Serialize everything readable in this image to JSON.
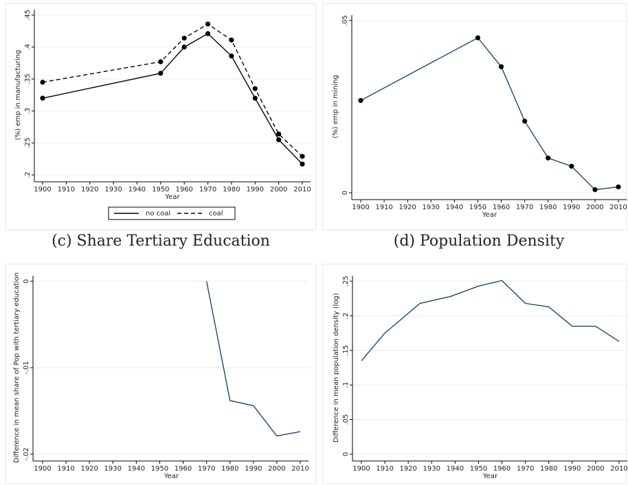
{
  "chart_data": [
    {
      "type": "line",
      "xlabel": "Year",
      "ylabel": "(%) emp in manufacturing",
      "x": [
        1900,
        1950,
        1960,
        1970,
        1980,
        1990,
        2000,
        2010
      ],
      "series": [
        {
          "name": "no coal",
          "color": "#000000",
          "dash": false,
          "marker": true,
          "values": [
            0.32,
            0.359,
            0.4,
            0.421,
            0.386,
            0.32,
            0.255,
            0.217
          ]
        },
        {
          "name": "coal",
          "color": "#000000",
          "dash": true,
          "marker": true,
          "values": [
            0.345,
            0.377,
            0.414,
            0.436,
            0.411,
            0.335,
            0.264,
            0.229
          ]
        }
      ],
      "xlim": [
        1900,
        2010
      ],
      "ylim": [
        0.2,
        0.45
      ],
      "xticks": [
        1900,
        1910,
        1920,
        1930,
        1940,
        1950,
        1960,
        1970,
        1980,
        1990,
        2000,
        2010
      ],
      "yticks": [
        {
          "value": 0.2,
          "label": ".2"
        },
        {
          "value": 0.25,
          "label": ".25"
        },
        {
          "value": 0.3,
          "label": ".3"
        },
        {
          "value": 0.35,
          "label": ".35"
        },
        {
          "value": 0.4,
          "label": ".4"
        },
        {
          "value": 0.45,
          "label": ".45"
        }
      ],
      "grid": true,
      "legend": "bottom"
    },
    {
      "type": "line",
      "xlabel": "Year",
      "ylabel": "(%) emp in mining",
      "x": [
        1900,
        1950,
        1960,
        1970,
        1980,
        1990,
        2000,
        2010
      ],
      "series": [
        {
          "color": "#1a476f",
          "dash": false,
          "marker": true,
          "values": [
            0.0268,
            0.045,
            0.0366,
            0.0208,
            0.0101,
            0.0077,
            0.0009,
            0.0017
          ]
        }
      ],
      "xlim": [
        1900,
        2010
      ],
      "ylim": [
        0,
        0.05
      ],
      "xticks": [
        1900,
        1910,
        1920,
        1930,
        1940,
        1950,
        1960,
        1970,
        1980,
        1990,
        2000,
        2010
      ],
      "yticks": [
        0,
        {
          "value": 0.05,
          "label": ".05"
        }
      ],
      "grid": true
    },
    {
      "type": "line",
      "caption": "(c) Share Tertiary Education",
      "xlabel": "Year",
      "ylabel": "Difference in mean share of Pop with tertiary education",
      "x": [
        1970,
        1980,
        1990,
        2000,
        2010
      ],
      "series": [
        {
          "color": "#1a476f",
          "dash": false,
          "marker": false,
          "values": [
            0,
            -0.0138,
            -0.0144,
            -0.0179,
            -0.0174
          ]
        }
      ],
      "xlim": [
        1900,
        2010
      ],
      "ylim": [
        -0.02,
        0
      ],
      "xticks": [
        1900,
        1910,
        1920,
        1930,
        1940,
        1950,
        1960,
        1970,
        1980,
        1990,
        2000,
        2010
      ],
      "yticks": [
        {
          "value": -0.02,
          "label": "-.02"
        },
        {
          "value": -0.01,
          "label": "-.01"
        },
        0
      ],
      "grid": true
    },
    {
      "type": "line",
      "caption": "(d) Population Density",
      "xlabel": "Year",
      "ylabel": "Difference in mean population density (log)",
      "x": [
        1900,
        1910,
        1925,
        1938,
        1950,
        1960,
        1970,
        1980,
        1990,
        2000,
        2010
      ],
      "series": [
        {
          "color": "#1a476f",
          "dash": false,
          "marker": false,
          "values": [
            0.135,
            0.175,
            0.218,
            0.228,
            0.243,
            0.251,
            0.218,
            0.213,
            0.185,
            0.185,
            0.163
          ]
        }
      ],
      "xlim": [
        1900,
        2010
      ],
      "ylim": [
        0,
        0.25
      ],
      "xticks": [
        1900,
        1910,
        1920,
        1930,
        1940,
        1950,
        1960,
        1970,
        1980,
        1990,
        2000,
        2010
      ],
      "yticks": [
        0,
        {
          "value": 0.05,
          "label": ".05"
        },
        {
          "value": 0.1,
          "label": ".1"
        },
        {
          "value": 0.15,
          "label": ".15"
        },
        {
          "value": 0.2,
          "label": ".2"
        },
        {
          "value": 0.25,
          "label": ".25"
        }
      ],
      "grid": true
    }
  ]
}
